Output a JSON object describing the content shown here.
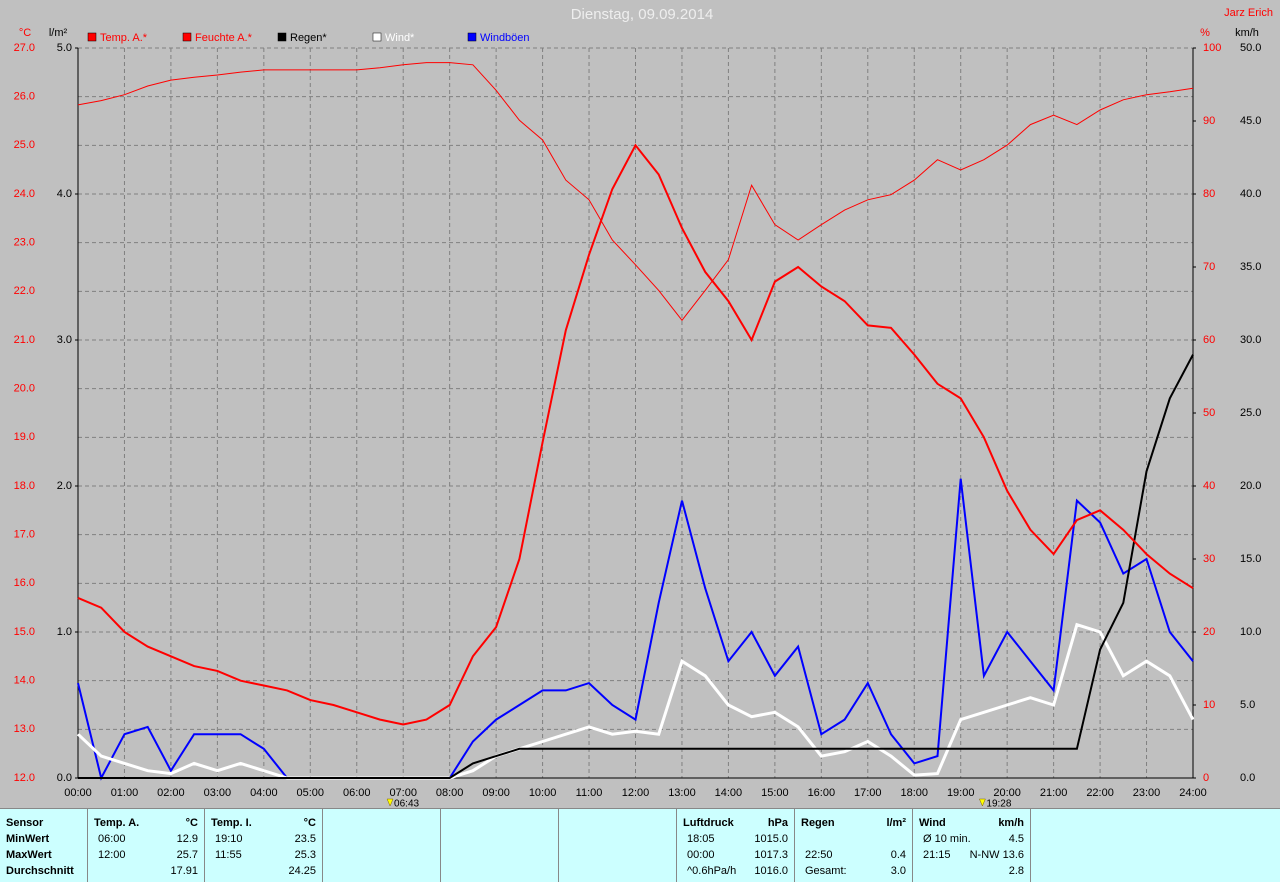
{
  "chart_data": {
    "type": "line",
    "title": "Dienstag, 09.09.2014",
    "author": "Jarz Erich",
    "grid": true,
    "background": "#c0c0c0",
    "xlim": [
      0,
      24
    ],
    "xticks": [
      {
        "value": 0,
        "label": "00:00"
      },
      {
        "value": 1,
        "label": "01:00"
      },
      {
        "value": 2,
        "label": "02:00"
      },
      {
        "value": 3,
        "label": "03:00"
      },
      {
        "value": 4,
        "label": "04:00"
      },
      {
        "value": 5,
        "label": "05:00"
      },
      {
        "value": 6,
        "label": "06:00"
      },
      {
        "value": 7,
        "label": "07:00"
      },
      {
        "value": 8,
        "label": "08:00"
      },
      {
        "value": 9,
        "label": "09:00"
      },
      {
        "value": 10,
        "label": "10:00"
      },
      {
        "value": 11,
        "label": "11:00"
      },
      {
        "value": 12,
        "label": "12:00"
      },
      {
        "value": 13,
        "label": "13:00"
      },
      {
        "value": 14,
        "label": "14:00"
      },
      {
        "value": 15,
        "label": "15:00"
      },
      {
        "value": 16,
        "label": "16:00"
      },
      {
        "value": 17,
        "label": "17:00"
      },
      {
        "value": 18,
        "label": "18:00"
      },
      {
        "value": 19,
        "label": "19:00"
      },
      {
        "value": 20,
        "label": "20:00"
      },
      {
        "value": 21,
        "label": "21:00"
      },
      {
        "value": 22,
        "label": "22:00"
      },
      {
        "value": 23,
        "label": "23:00"
      },
      {
        "value": 24,
        "label": "24:00"
      }
    ],
    "axes": [
      {
        "unit": "°C",
        "side": "left",
        "color": "#ff0000",
        "lim": [
          12,
          27
        ],
        "ticks": [
          {
            "value": 12,
            "label": "12.0"
          },
          {
            "value": 13,
            "label": "13.0"
          },
          {
            "value": 14,
            "label": "14.0"
          },
          {
            "value": 15,
            "label": "15.0"
          },
          {
            "value": 16,
            "label": "16.0"
          },
          {
            "value": 17,
            "label": "17.0"
          },
          {
            "value": 18,
            "label": "18.0"
          },
          {
            "value": 19,
            "label": "19.0"
          },
          {
            "value": 20,
            "label": "20.0"
          },
          {
            "value": 21,
            "label": "21.0"
          },
          {
            "value": 22,
            "label": "22.0"
          },
          {
            "value": 23,
            "label": "23.0"
          },
          {
            "value": 24,
            "label": "24.0"
          },
          {
            "value": 25,
            "label": "25.0"
          },
          {
            "value": 26,
            "label": "26.0"
          },
          {
            "value": 27,
            "label": "27.0"
          }
        ]
      },
      {
        "unit": "l/m²",
        "side": "left",
        "color": "#000000",
        "lim": [
          0,
          5
        ],
        "ticks": [
          {
            "value": 0,
            "label": "0.0"
          },
          {
            "value": 1,
            "label": "1.0"
          },
          {
            "value": 2,
            "label": "2.0"
          },
          {
            "value": 3,
            "label": "3.0"
          },
          {
            "value": 4,
            "label": "4.0"
          },
          {
            "value": 5,
            "label": "5.0"
          }
        ]
      },
      {
        "unit": "%",
        "side": "right",
        "color": "#ff0000",
        "lim": [
          0,
          100
        ],
        "ticks": [
          0,
          10,
          20,
          30,
          40,
          50,
          60,
          70,
          80,
          90,
          100
        ]
      },
      {
        "unit": "km/h",
        "side": "right",
        "color": "#000000",
        "lim": [
          0,
          50
        ],
        "ticks": [
          {
            "value": 0,
            "label": "0.0"
          },
          {
            "value": 5,
            "label": "5.0"
          },
          {
            "value": 10,
            "label": "10.0"
          },
          {
            "value": 15,
            "label": "15.0"
          },
          {
            "value": 20,
            "label": "20.0"
          },
          {
            "value": 25,
            "label": "25.0"
          },
          {
            "value": 30,
            "label": "30.0"
          },
          {
            "value": 35,
            "label": "35.0"
          },
          {
            "value": 40,
            "label": "40.0"
          },
          {
            "value": 45,
            "label": "45.0"
          },
          {
            "value": 50,
            "label": "50.0"
          }
        ]
      }
    ],
    "x": [
      0,
      0.5,
      1,
      1.5,
      2,
      2.5,
      3,
      3.5,
      4,
      4.5,
      5,
      5.5,
      6,
      6.5,
      7,
      7.5,
      8,
      8.5,
      9,
      9.5,
      10,
      10.5,
      11,
      11.5,
      12,
      12.5,
      13,
      13.5,
      14,
      14.5,
      15,
      15.5,
      16,
      16.5,
      17,
      17.5,
      18,
      18.5,
      19,
      19.5,
      20,
      20.5,
      21,
      21.5,
      22,
      22.5,
      23,
      23.5,
      24
    ],
    "series": [
      {
        "name": "Temp. A.*",
        "color": "#ff0000",
        "axis": 0,
        "width": 2,
        "values": [
          15.7,
          15.5,
          15.0,
          14.7,
          14.5,
          14.3,
          14.2,
          14.0,
          13.9,
          13.8,
          13.6,
          13.5,
          13.35,
          13.2,
          13.1,
          13.2,
          13.5,
          14.5,
          15.1,
          16.5,
          18.9,
          21.2,
          22.75,
          24.1,
          25.0,
          24.4,
          23.3,
          22.4,
          21.8,
          21.0,
          22.2,
          22.5,
          22.1,
          21.8,
          21.3,
          21.25,
          20.7,
          20.1,
          19.8,
          19.0,
          17.9,
          17.1,
          16.6,
          17.3,
          17.5,
          17.1,
          16.6,
          16.2,
          15.9
        ]
      },
      {
        "name": "Feuchte A.*",
        "color": "#ff0000",
        "axis": 2,
        "width": 1,
        "values": [
          92.2,
          92.8,
          93.6,
          94.8,
          95.6,
          96.0,
          96.3,
          96.7,
          97.0,
          97.0,
          97.0,
          97.0,
          97.0,
          97.3,
          97.7,
          98.0,
          98.0,
          97.7,
          94.2,
          90.1,
          87.4,
          81.9,
          79.2,
          73.7,
          70.3,
          66.8,
          62.7,
          66.8,
          71.0,
          81.2,
          75.8,
          73.7,
          75.8,
          77.8,
          79.2,
          79.9,
          81.9,
          84.7,
          83.3,
          84.7,
          86.7,
          89.5,
          90.8,
          89.5,
          91.5,
          92.9,
          93.6,
          94.0,
          94.5
        ]
      },
      {
        "name": "Regen*",
        "color": "#000000",
        "axis": 1,
        "width": 2,
        "values": [
          0,
          0,
          0,
          0,
          0,
          0,
          0,
          0,
          0,
          0,
          0,
          0,
          0,
          0,
          0,
          0,
          0,
          0.1,
          0.15,
          0.2,
          0.2,
          0.2,
          0.2,
          0.2,
          0.2,
          0.2,
          0.2,
          0.2,
          0.2,
          0.2,
          0.2,
          0.2,
          0.2,
          0.2,
          0.2,
          0.2,
          0.2,
          0.2,
          0.2,
          0.2,
          0.2,
          0.2,
          0.2,
          0.2,
          0.88,
          1.2,
          2.1,
          2.6,
          2.9
        ]
      },
      {
        "name": "Wind*",
        "color": "#ffffff",
        "axis": 3,
        "width": 3,
        "values": [
          3,
          1.5,
          1,
          0.5,
          0.3,
          1,
          0.5,
          1,
          0.5,
          0,
          0,
          0,
          0,
          0,
          0,
          0,
          0,
          0.5,
          1.5,
          2,
          2.5,
          3,
          3.5,
          3,
          3.2,
          3,
          8,
          7,
          5,
          4.2,
          4.5,
          3.5,
          1.5,
          1.8,
          2.5,
          1.5,
          0.2,
          0.3,
          4,
          4.5,
          5,
          5.5,
          5,
          10.5,
          10,
          7,
          8,
          7,
          4
        ]
      },
      {
        "name": "Windböen",
        "color": "#0000ff",
        "axis": 3,
        "width": 2,
        "values": [
          6.5,
          0,
          3,
          3.5,
          0.5,
          3,
          3,
          3,
          2,
          0,
          0,
          0,
          0,
          0,
          0,
          0,
          0,
          2.5,
          4,
          5,
          6,
          6,
          6.5,
          5,
          4,
          12,
          19,
          13,
          8,
          10,
          7,
          9,
          3,
          4,
          6.5,
          3,
          1,
          1.5,
          20.5,
          7,
          10,
          8,
          6,
          19,
          17.5,
          14,
          15,
          10,
          8
        ]
      }
    ],
    "annotations": [
      {
        "x": 6.717,
        "label": "06:43"
      },
      {
        "x": 19.467,
        "label": "19:28"
      }
    ]
  },
  "stats": [
    {
      "header": [
        "Sensor"
      ],
      "rows": [
        {
          "label": "MinWert"
        },
        {
          "label": "MaxWert"
        },
        {
          "label": "Durchschnitt"
        }
      ]
    },
    {
      "header": [
        "Temp. A.",
        "°C"
      ],
      "rows": [
        {
          "time": "06:00",
          "value": "12.9"
        },
        {
          "time": "12:00",
          "value": "25.7"
        },
        {
          "value": "17.91"
        }
      ]
    },
    {
      "header": [
        "Temp. I.",
        "°C"
      ],
      "rows": [
        {
          "time": "19:10",
          "value": "23.5"
        },
        {
          "time": "11:55",
          "value": "25.3"
        },
        {
          "value": "24.25"
        }
      ]
    },
    {},
    {},
    {},
    {
      "header": [
        "Luftdruck",
        "hPa"
      ],
      "rows": [
        {
          "time": "18:05",
          "value": "1015.0"
        },
        {
          "time": "00:00",
          "value": "1017.3"
        },
        {
          "time": "^0.6hPa/h",
          "value": "1016.0"
        }
      ]
    },
    {
      "header": [
        "Regen",
        "l/m²"
      ],
      "rows": [
        {},
        {
          "time": "22:50",
          "value": "0.4"
        },
        {
          "time": "Gesamt:",
          "value": "3.0"
        }
      ]
    },
    {
      "header": [
        "Wind",
        "km/h"
      ],
      "rows": [
        {
          "time": "Ø 10 min.",
          "value": "4.5"
        },
        {
          "time": "21:15",
          "value": "N-NW 13.6"
        },
        {
          "value": "2.8"
        }
      ]
    }
  ]
}
